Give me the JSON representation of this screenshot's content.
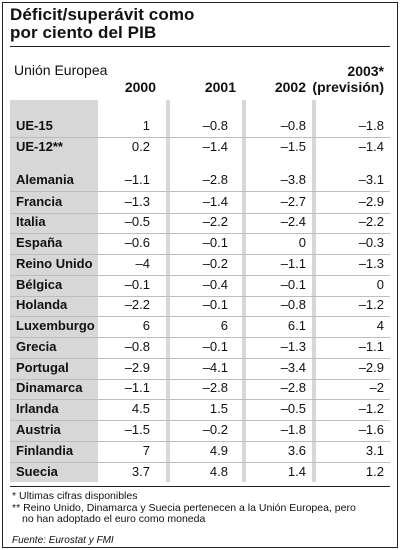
{
  "title_line1": "Déficit/superávit como",
  "title_line2": "por ciento del PIB",
  "subtitle": "Unión Europea",
  "headers": [
    "2000",
    "2001",
    "2002",
    "2003*",
    "(previsión)"
  ],
  "rows": [
    {
      "label": "UE-15",
      "values": [
        "1",
        "–0.8",
        "–0.8",
        "–1.8"
      ]
    },
    {
      "label": "UE-12**",
      "values": [
        "0.2",
        "–1.4",
        "–1.5",
        "–1.4"
      ]
    },
    {
      "label": "Alemania",
      "values": [
        "–1.1",
        "–2.8",
        "–3.8",
        "–3.1"
      ]
    },
    {
      "label": "Francia",
      "values": [
        "–1.3",
        "–1.4",
        "–2.7",
        "–2.9"
      ]
    },
    {
      "label": "Italia",
      "values": [
        "–0.5",
        "–2.2",
        "–2.4",
        "–2.2"
      ]
    },
    {
      "label": "España",
      "values": [
        "–0.6",
        "–0.1",
        "0",
        "–0.3"
      ]
    },
    {
      "label": "Reino Unido",
      "values": [
        "–4",
        "–0.2",
        "–1.1",
        "–1.3"
      ]
    },
    {
      "label": "Bélgica",
      "values": [
        "–0.1",
        "–0.4",
        "–0.1",
        "0"
      ]
    },
    {
      "label": "Holanda",
      "values": [
        "–2.2",
        "–0.1",
        "–0.8",
        "–1.2"
      ]
    },
    {
      "label": "Luxemburgo",
      "values": [
        "6",
        "6",
        "6.1",
        "4"
      ]
    },
    {
      "label": "Grecia",
      "values": [
        "–0.8",
        "–0.1",
        "–1.3",
        "–1.1"
      ]
    },
    {
      "label": "Portugal",
      "values": [
        "–2.9",
        "–4.1",
        "–3.4",
        "–2.9"
      ]
    },
    {
      "label": "Dinamarca",
      "values": [
        "–1.1",
        "–2.8",
        "–2.8",
        "–2"
      ]
    },
    {
      "label": "Irlanda",
      "values": [
        "4.5",
        "1.5",
        "–0.5",
        "–1.2"
      ]
    },
    {
      "label": "Austria",
      "values": [
        "–1.5",
        "–0.2",
        "–1.8",
        "–1.6"
      ]
    },
    {
      "label": "Finlandia",
      "values": [
        "7",
        "4.9",
        "3.6",
        "3.1"
      ]
    },
    {
      "label": "Suecia",
      "values": [
        "3.7",
        "4.8",
        "1.4",
        "1.2"
      ]
    }
  ],
  "notes": [
    "* Ultimas cifras disponibles",
    "** Reino Unido, Dinamarca y Suecia pertenecen a la Unión Europea, pero",
    "no han adoptado el euro como moneda"
  ],
  "source": "Fuente: Eurostat y FMI"
}
